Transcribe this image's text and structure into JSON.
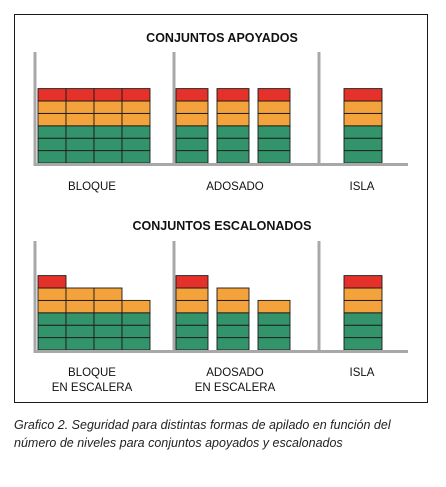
{
  "colors": {
    "green": "#33936a",
    "orange": "#f4a23c",
    "red": "#e4312a",
    "cell_border": "#1a1a1a",
    "support": "#a8a8a8"
  },
  "panels": [
    {
      "title": "CONJUNTOS APOYADOS",
      "groups": [
        {
          "label": [
            "BLOQUE"
          ],
          "stacks": [
            [
              "green",
              "green",
              "green",
              "orange",
              "orange",
              "red"
            ],
            [
              "green",
              "green",
              "green",
              "orange",
              "orange",
              "red"
            ],
            [
              "green",
              "green",
              "green",
              "orange",
              "orange",
              "red"
            ],
            [
              "green",
              "green",
              "green",
              "orange",
              "orange",
              "red"
            ]
          ]
        },
        {
          "label": [
            "ADOSADO"
          ],
          "stacks": [
            [
              "green",
              "green",
              "green",
              "orange",
              "orange",
              "red"
            ],
            [
              "green",
              "green",
              "green",
              "orange",
              "orange",
              "red"
            ],
            [
              "green",
              "green",
              "green",
              "orange",
              "orange",
              "red"
            ]
          ]
        },
        {
          "label": [
            "ISLA"
          ],
          "stacks": [
            [
              "green",
              "green",
              "green",
              "orange",
              "orange",
              "red"
            ]
          ]
        }
      ]
    },
    {
      "title": "CONJUNTOS ESCALONADOS",
      "groups": [
        {
          "label": [
            "BLOQUE",
            "EN ESCALERA"
          ],
          "stacks": [
            [
              "green",
              "green",
              "green",
              "orange",
              "orange",
              "red"
            ],
            [
              "green",
              "green",
              "green",
              "orange",
              "orange"
            ],
            [
              "green",
              "green",
              "green",
              "orange",
              "orange"
            ],
            [
              "green",
              "green",
              "green",
              "orange"
            ]
          ]
        },
        {
          "label": [
            "ADOSADO",
            "EN ESCALERA"
          ],
          "stacks": [
            [
              "green",
              "green",
              "green",
              "orange",
              "orange",
              "red"
            ],
            [
              "green",
              "green",
              "green",
              "orange",
              "orange"
            ],
            [
              "green",
              "green",
              "green",
              "orange"
            ]
          ]
        },
        {
          "label": [
            "ISLA"
          ],
          "stacks": [
            [
              "green",
              "green",
              "green",
              "orange",
              "orange",
              "red"
            ]
          ]
        }
      ]
    }
  ],
  "caption": "Grafico 2. Seguridad para distintas formas de apilado en función del número de niveles para conjuntos apoyados y escalonados"
}
